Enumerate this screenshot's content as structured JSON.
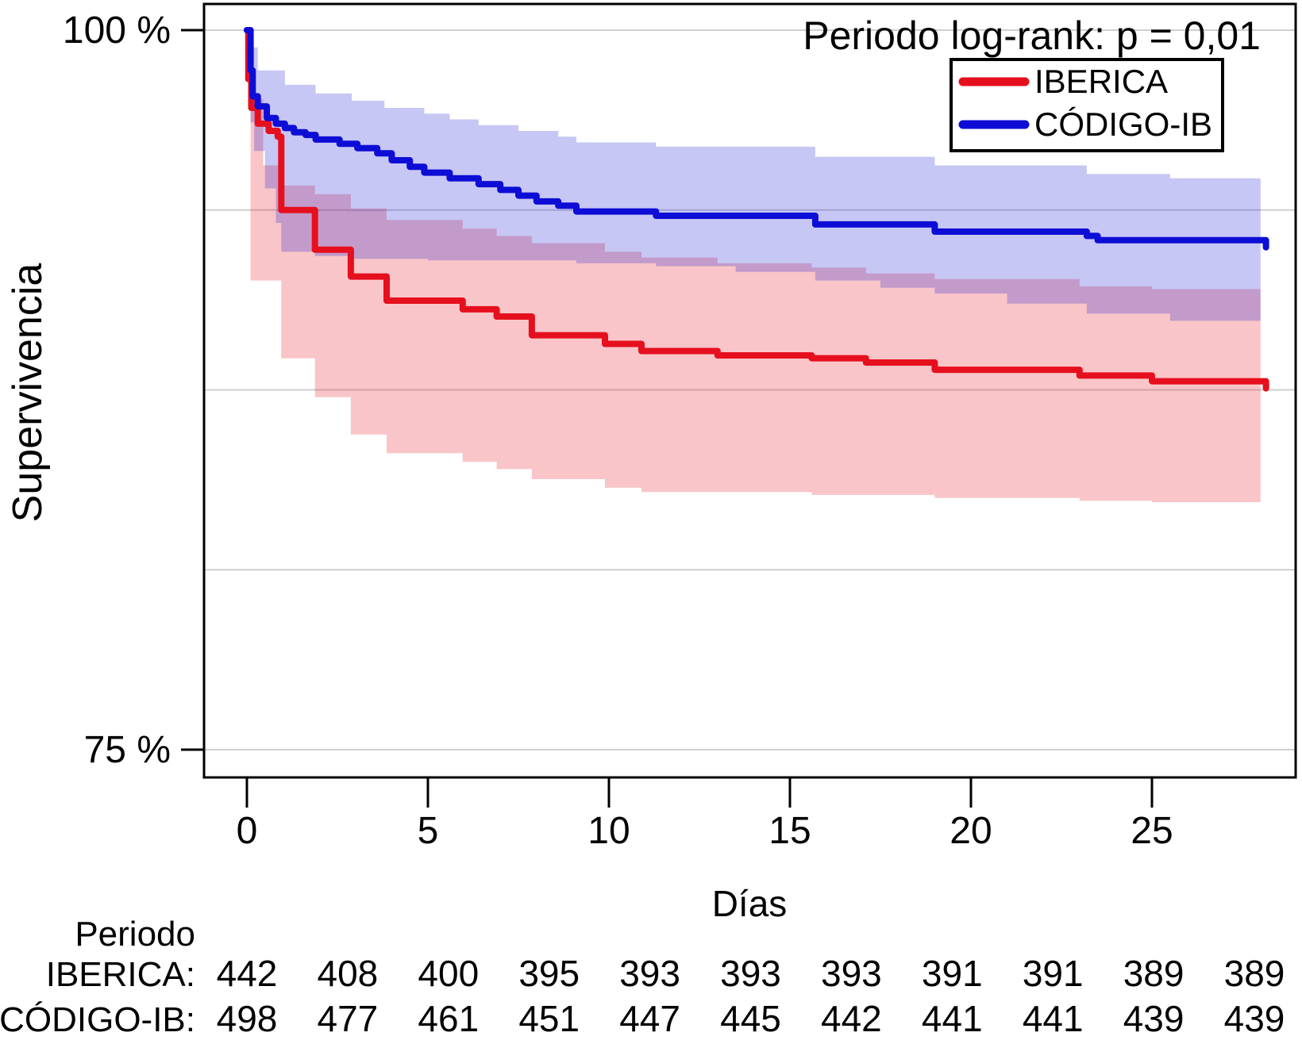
{
  "figure": {
    "annotation": "Periodo log-rank: p = 0,01",
    "legend": [
      {
        "label": "IBERICA",
        "color": "#e60f1e"
      },
      {
        "label": "CÓDIGO-IB",
        "color": "#0d0dd6"
      }
    ]
  },
  "chart_data": {
    "type": "line",
    "subtype": "kaplan-meier-step-with-ci-bands",
    "title": "Periodo log-rank: p = 0,01",
    "xlabel": "Días",
    "ylabel": "Supervivencia",
    "xlim": [
      0,
      29
    ],
    "ylim": [
      75,
      100
    ],
    "grid": "horizontal-only",
    "gridlines_pct": [
      100,
      93.75,
      87.5,
      81.25,
      75
    ],
    "legend_position": "top-right",
    "x_ticks": [
      {
        "value": 0,
        "label": "0"
      },
      {
        "value": 5,
        "label": "5"
      },
      {
        "value": 10,
        "label": "10"
      },
      {
        "value": 15,
        "label": "15"
      },
      {
        "value": 20,
        "label": "20"
      },
      {
        "value": 25,
        "label": "25"
      }
    ],
    "y_ticks": [
      {
        "value": 100,
        "label": "100 %"
      },
      {
        "value": 75,
        "label": "75 %"
      }
    ],
    "series": [
      {
        "name": "IBERICA",
        "color": "#e60f1e",
        "band_color": "rgba(230,25,35,0.25)",
        "end_day": 28.15,
        "ci_end_day": 28.0,
        "steps": [
          [
            0,
            100
          ],
          [
            0.04,
            98.3
          ],
          [
            0.12,
            97.3
          ],
          [
            0.3,
            96.75
          ],
          [
            0.6,
            96.5
          ],
          [
            0.85,
            96.3
          ],
          [
            0.95,
            93.75
          ],
          [
            1.88,
            92.37
          ],
          [
            2.87,
            91.44
          ],
          [
            3.86,
            90.6
          ],
          [
            5.96,
            90.3
          ],
          [
            6.9,
            90.05
          ],
          [
            7.87,
            89.4
          ],
          [
            9.89,
            89.1
          ],
          [
            10.9,
            88.85
          ],
          [
            13.0,
            88.7
          ],
          [
            15.6,
            88.6
          ],
          [
            17.1,
            88.45
          ],
          [
            19.0,
            88.2
          ],
          [
            23.0,
            88.0
          ],
          [
            25.0,
            87.8
          ]
        ],
        "ci_upper": [
          [
            0,
            100
          ],
          [
            0.1,
            97.6
          ],
          [
            0.45,
            95.3
          ],
          [
            0.95,
            94.6
          ],
          [
            1.88,
            94.3
          ],
          [
            2.87,
            93.8
          ],
          [
            3.86,
            93.4
          ],
          [
            5.96,
            93.1
          ],
          [
            6.9,
            92.85
          ],
          [
            7.87,
            92.6
          ],
          [
            9.89,
            92.3
          ],
          [
            10.9,
            92.1
          ],
          [
            13.0,
            91.9
          ],
          [
            15.6,
            91.75
          ],
          [
            17.1,
            91.55
          ],
          [
            19.0,
            91.35
          ],
          [
            23.0,
            91.1
          ],
          [
            25.0,
            91.0
          ]
        ],
        "ci_lower": [
          [
            0,
            100
          ],
          [
            0.1,
            91.3
          ],
          [
            0.95,
            88.6
          ],
          [
            1.88,
            87.25
          ],
          [
            2.87,
            85.95
          ],
          [
            3.86,
            85.3
          ],
          [
            5.96,
            85.0
          ],
          [
            6.9,
            84.75
          ],
          [
            7.87,
            84.4
          ],
          [
            9.89,
            84.1
          ],
          [
            10.9,
            83.95
          ],
          [
            15.6,
            83.85
          ],
          [
            19.0,
            83.75
          ],
          [
            23.0,
            83.65
          ],
          [
            25.0,
            83.6
          ]
        ]
      },
      {
        "name": "CÓDIGO-IB",
        "color": "#0d0dd6",
        "band_color": "rgba(20,20,215,0.24)",
        "end_day": 28.15,
        "ci_end_day": 28.0,
        "steps": [
          [
            0,
            100
          ],
          [
            0.1,
            98.6
          ],
          [
            0.16,
            97.7
          ],
          [
            0.3,
            97.35
          ],
          [
            0.55,
            96.95
          ],
          [
            0.8,
            96.75
          ],
          [
            1.05,
            96.6
          ],
          [
            1.3,
            96.45
          ],
          [
            1.62,
            96.36
          ],
          [
            1.9,
            96.2
          ],
          [
            2.56,
            96.05
          ],
          [
            3.05,
            95.9
          ],
          [
            3.6,
            95.72
          ],
          [
            4.0,
            95.48
          ],
          [
            4.5,
            95.25
          ],
          [
            4.9,
            95.05
          ],
          [
            5.6,
            94.85
          ],
          [
            6.4,
            94.65
          ],
          [
            7.0,
            94.45
          ],
          [
            7.5,
            94.25
          ],
          [
            8.0,
            94.05
          ],
          [
            8.6,
            93.9
          ],
          [
            9.1,
            93.7
          ],
          [
            11.3,
            93.55
          ],
          [
            15.7,
            93.25
          ],
          [
            19.0,
            93.0
          ],
          [
            23.2,
            92.85
          ],
          [
            23.5,
            92.7
          ]
        ],
        "ci_upper": [
          [
            0,
            100
          ],
          [
            0.1,
            99.4
          ],
          [
            0.3,
            98.6
          ],
          [
            1.05,
            98.1
          ],
          [
            1.9,
            97.8
          ],
          [
            2.9,
            97.55
          ],
          [
            3.8,
            97.3
          ],
          [
            4.9,
            97.1
          ],
          [
            5.6,
            96.9
          ],
          [
            6.4,
            96.7
          ],
          [
            7.5,
            96.5
          ],
          [
            8.6,
            96.3
          ],
          [
            9.1,
            96.1
          ],
          [
            11.3,
            95.95
          ],
          [
            15.7,
            95.6
          ],
          [
            19.0,
            95.3
          ],
          [
            23.2,
            95.0
          ],
          [
            25.5,
            94.85
          ]
        ],
        "ci_lower": [
          [
            0,
            100
          ],
          [
            0.1,
            96.8
          ],
          [
            0.2,
            95.8
          ],
          [
            0.5,
            94.5
          ],
          [
            0.8,
            93.3
          ],
          [
            0.95,
            92.3
          ],
          [
            1.88,
            92.15
          ],
          [
            2.87,
            92.05
          ],
          [
            5.0,
            92.0
          ],
          [
            9.1,
            91.9
          ],
          [
            11.3,
            91.8
          ],
          [
            13.5,
            91.6
          ],
          [
            15.7,
            91.3
          ],
          [
            17.5,
            91.05
          ],
          [
            19.0,
            90.85
          ],
          [
            21.0,
            90.5
          ],
          [
            23.2,
            90.15
          ],
          [
            25.5,
            89.9
          ]
        ]
      }
    ]
  },
  "risk_table": {
    "header": "Periodo",
    "rows": [
      {
        "label": "IBERICA:",
        "number_color": "#d9504e",
        "values": [
          442,
          408,
          400,
          395,
          393,
          393,
          393,
          391,
          391,
          389,
          389
        ]
      },
      {
        "label": "CÓDIGO-IB:",
        "number_color": "#2b2bce",
        "values": [
          498,
          477,
          461,
          451,
          447,
          445,
          442,
          441,
          441,
          439,
          439
        ]
      }
    ]
  }
}
